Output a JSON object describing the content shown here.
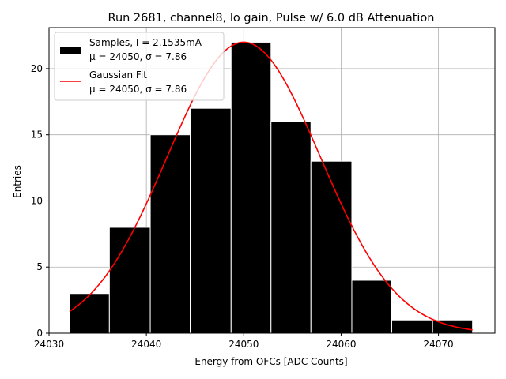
{
  "chart_data": {
    "type": "bar",
    "title": "Run 2681, channel8, lo gain, Pulse w/ 6.0 dB Attenuation",
    "xlabel": "Energy from OFCs [ADC Counts]",
    "ylabel": "Entries",
    "xlim": [
      24030,
      24075.8
    ],
    "ylim": [
      0,
      23.1
    ],
    "xticks": [
      24030,
      24040,
      24050,
      24060,
      24070
    ],
    "yticks": [
      0,
      5,
      10,
      15,
      20
    ],
    "grid": true,
    "legend_position": "top-left",
    "bin_edges": [
      24032.1,
      24036.2,
      24040.4,
      24044.5,
      24048.7,
      24052.8,
      24056.9,
      24061.1,
      24065.2,
      24069.4,
      24073.5
    ],
    "bin_counts": [
      3,
      8,
      15,
      17,
      22,
      16,
      13,
      4,
      1,
      1
    ],
    "fit": {
      "mu": 24050,
      "sigma": 7.86,
      "amplitude": 22,
      "x_range": [
        24032.1,
        24073.5
      ]
    },
    "series": [
      {
        "name": "Samples, I = 2.1535mA",
        "name_line2": "μ = 24050, σ = 7.86",
        "color": "#000000",
        "edge_color": "#ffffff"
      },
      {
        "name": "Gaussian Fit",
        "name_line2": "μ = 24050, σ = 7.86",
        "color": "#ff0000"
      }
    ]
  }
}
